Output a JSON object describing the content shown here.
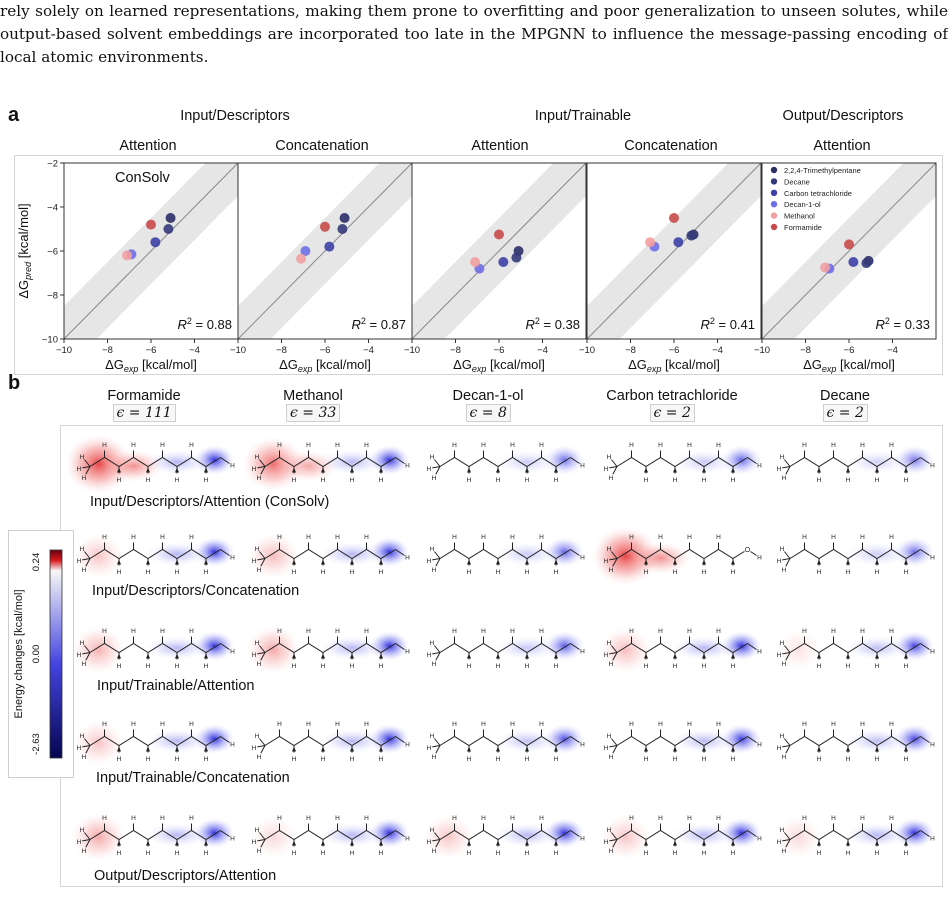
{
  "intro": {
    "text": "rely solely on learned representations, making them prone to overfitting and poor generalization to unseen solutes, while output-based solvent embeddings are incorporated too late in the MPGNN to influence the message-passing encoding of local atomic environments."
  },
  "panel_a": {
    "letter": "a",
    "group_titles": [
      "Input/Descriptors",
      "Input/Trainable",
      "Output/Descriptors"
    ],
    "subtitles": [
      "Attention",
      "Concatenation",
      "Attention",
      "Concatenation",
      "Attention"
    ],
    "first_plot_label": "ConSolv",
    "ylabel": "ΔG",
    "ylabel_sub": "pred",
    "ylabel_unit": " [kcal/mol]",
    "xlabel": "ΔG",
    "xlabel_sub": "exp",
    "xlabel_unit": " [kcal/mol]",
    "r2_prefix": "R",
    "legend": [
      "2,2,4-Trimethylpentane",
      "Decane",
      "Carbon tetrachloride",
      "Decan-1-ol",
      "Methanol",
      "Formamide"
    ],
    "colors": {
      "2,2,4-Trimethylpentane": "#2b2f66",
      "Decane": "#353a7a",
      "Carbon tetrachloride": "#3d40a6",
      "Decan-1-ol": "#6f6fe8",
      "Methanol": "#f2a0a0",
      "Formamide": "#c84a4a"
    }
  },
  "chart_data": [
    {
      "type": "scatter",
      "title": "Input/Descriptors — Attention",
      "xlim": [
        -10,
        -2
      ],
      "ylim": [
        -10,
        -2
      ],
      "xticks": [
        -10,
        -8,
        -6,
        -4
      ],
      "yticks": [
        -10,
        -8,
        -6,
        -4,
        -2
      ],
      "r2": "= 0.88",
      "points": [
        {
          "solvent": "2,2,4-Trimethylpentane",
          "x": -5.1,
          "y": -4.5
        },
        {
          "solvent": "Decane",
          "x": -5.2,
          "y": -5.0
        },
        {
          "solvent": "Carbon tetrachloride",
          "x": -5.8,
          "y": -5.6
        },
        {
          "solvent": "Decan-1-ol",
          "x": -6.9,
          "y": -6.15
        },
        {
          "solvent": "Methanol",
          "x": -7.1,
          "y": -6.2
        },
        {
          "solvent": "Formamide",
          "x": -6.0,
          "y": -4.8
        }
      ]
    },
    {
      "type": "scatter",
      "title": "Input/Descriptors — Concatenation",
      "xlim": [
        -10,
        -2
      ],
      "ylim": [
        -10,
        -2
      ],
      "xticks": [
        -10,
        -8,
        -6,
        -4
      ],
      "yticks": [],
      "r2": "= 0.87",
      "points": [
        {
          "solvent": "2,2,4-Trimethylpentane",
          "x": -5.1,
          "y": -4.5
        },
        {
          "solvent": "Decane",
          "x": -5.2,
          "y": -5.0
        },
        {
          "solvent": "Carbon tetrachloride",
          "x": -5.8,
          "y": -5.8
        },
        {
          "solvent": "Decan-1-ol",
          "x": -6.9,
          "y": -6.0
        },
        {
          "solvent": "Methanol",
          "x": -7.1,
          "y": -6.35
        },
        {
          "solvent": "Formamide",
          "x": -6.0,
          "y": -4.9
        }
      ]
    },
    {
      "type": "scatter",
      "title": "Input/Trainable — Attention",
      "xlim": [
        -10,
        -2
      ],
      "ylim": [
        -10,
        -2
      ],
      "xticks": [
        -10,
        -8,
        -6,
        -4
      ],
      "yticks": [],
      "r2": "= 0.38",
      "points": [
        {
          "solvent": "2,2,4-Trimethylpentane",
          "x": -5.1,
          "y": -6.0
        },
        {
          "solvent": "Decane",
          "x": -5.2,
          "y": -6.3
        },
        {
          "solvent": "Carbon tetrachloride",
          "x": -5.8,
          "y": -6.5
        },
        {
          "solvent": "Decan-1-ol",
          "x": -6.9,
          "y": -6.8
        },
        {
          "solvent": "Methanol",
          "x": -7.1,
          "y": -6.5
        },
        {
          "solvent": "Formamide",
          "x": -6.0,
          "y": -5.25
        }
      ]
    },
    {
      "type": "scatter",
      "title": "Input/Trainable — Concatenation",
      "xlim": [
        -10,
        -2
      ],
      "ylim": [
        -10,
        -2
      ],
      "xticks": [
        -10,
        -8,
        -6,
        -4
      ],
      "yticks": [],
      "r2": "= 0.41",
      "points": [
        {
          "solvent": "2,2,4-Trimethylpentane",
          "x": -5.1,
          "y": -5.25
        },
        {
          "solvent": "Decane",
          "x": -5.2,
          "y": -5.3
        },
        {
          "solvent": "Carbon tetrachloride",
          "x": -5.8,
          "y": -5.6
        },
        {
          "solvent": "Decan-1-ol",
          "x": -6.9,
          "y": -5.8
        },
        {
          "solvent": "Methanol",
          "x": -7.1,
          "y": -5.6
        },
        {
          "solvent": "Formamide",
          "x": -6.0,
          "y": -4.5
        }
      ]
    },
    {
      "type": "scatter",
      "title": "Output/Descriptors — Attention",
      "xlim": [
        -10,
        -2
      ],
      "ylim": [
        -10,
        -2
      ],
      "xticks": [
        -10,
        -8,
        -6,
        -4
      ],
      "yticks": [],
      "r2": "= 0.33",
      "points": [
        {
          "solvent": "2,2,4-Trimethylpentane",
          "x": -5.1,
          "y": -6.45
        },
        {
          "solvent": "Decane",
          "x": -5.2,
          "y": -6.55
        },
        {
          "solvent": "Carbon tetrachloride",
          "x": -5.8,
          "y": -6.5
        },
        {
          "solvent": "Decan-1-ol",
          "x": -6.9,
          "y": -6.8
        },
        {
          "solvent": "Methanol",
          "x": -7.1,
          "y": -6.75
        },
        {
          "solvent": "Formamide",
          "x": -6.0,
          "y": -5.7
        }
      ]
    }
  ],
  "panel_b": {
    "letter": "b",
    "solvents": [
      {
        "name": "Formamide",
        "eps": "ϵ = 111"
      },
      {
        "name": "Methanol",
        "eps": "ϵ = 33"
      },
      {
        "name": "Decan-1-ol",
        "eps": "ϵ = 8"
      },
      {
        "name": "Carbon tetrachloride",
        "eps": "ϵ = 2"
      },
      {
        "name": "Decane",
        "eps": "ϵ = 2"
      }
    ],
    "rows": [
      {
        "label": "Input/Descriptors/Attention (ConSolv)",
        "red": [
          0.95,
          0.75,
          0.0,
          0.0,
          0.0
        ],
        "blue": [
          1.0,
          1.0,
          0.7,
          0.75,
          0.65
        ]
      },
      {
        "label": "Input/Descriptors/Concatenation",
        "red": [
          0.3,
          0.35,
          0.0,
          0.95,
          0.0
        ],
        "blue": [
          1.0,
          1.0,
          0.75,
          0.0,
          0.7
        ]
      },
      {
        "label": "Input/Trainable/Attention",
        "red": [
          0.4,
          0.45,
          0.0,
          0.35,
          0.15
        ],
        "blue": [
          1.0,
          1.0,
          0.8,
          1.0,
          0.9
        ]
      },
      {
        "label": "Input/Trainable/Concatenation",
        "red": [
          0.3,
          0.0,
          0.0,
          0.0,
          0.0
        ],
        "blue": [
          1.0,
          1.0,
          0.85,
          0.95,
          0.9
        ]
      },
      {
        "label": "Output/Descriptors/Attention",
        "red": [
          0.45,
          0.2,
          0.3,
          0.3,
          0.2
        ],
        "blue": [
          1.0,
          1.0,
          1.0,
          1.0,
          1.0
        ]
      }
    ],
    "colorbar": {
      "label": "Energy changes [kcal/mol]",
      "max": "0.24",
      "mid": "0.00",
      "min": "-2.63"
    },
    "atom_label": "H",
    "oxygen_label": "O"
  }
}
